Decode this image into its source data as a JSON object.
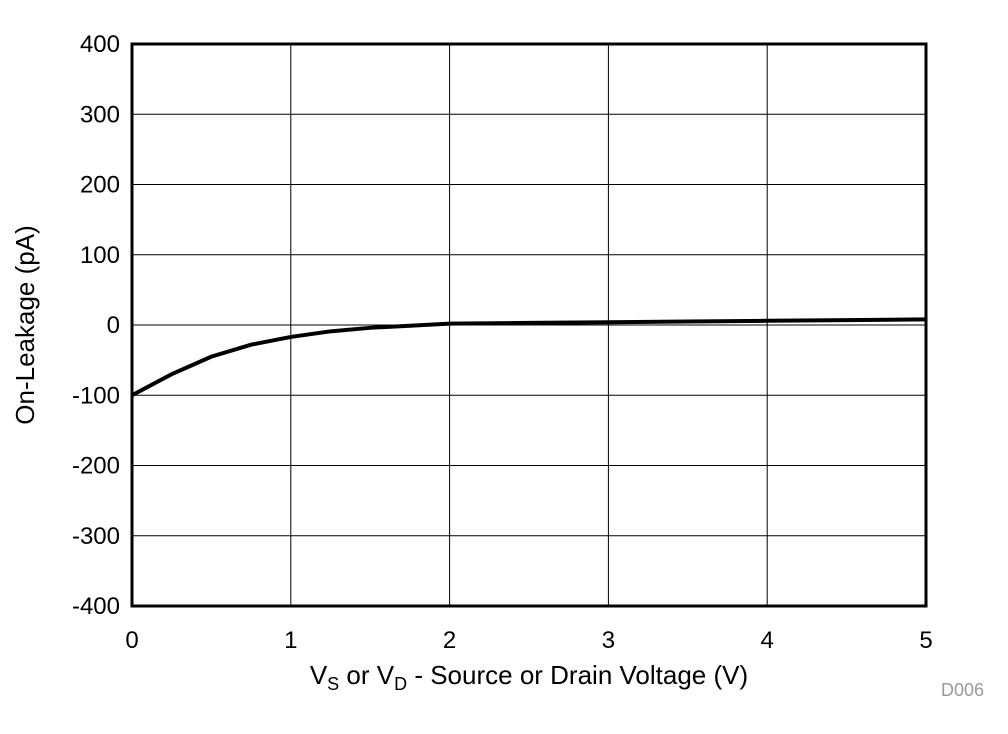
{
  "chart_data": {
    "type": "line",
    "title": "",
    "xlabel": "VS or VD - Source or Drain Voltage (V)",
    "xlabel_parts": {
      "v1": "V",
      "s1": "S",
      "mid": " or V",
      "s2": "D",
      "rest": " - Source or Drain Voltage (V)"
    },
    "ylabel": "On-Leakage (pA)",
    "xlim": [
      0,
      5
    ],
    "ylim": [
      -400,
      400
    ],
    "x_ticks": [
      "0",
      "1",
      "2",
      "3",
      "4",
      "5"
    ],
    "y_ticks": [
      "400",
      "300",
      "200",
      "100",
      "0",
      "-100",
      "-200",
      "-300",
      "-400"
    ],
    "grid": true,
    "legend": null,
    "series": [
      {
        "name": "On-Leakage",
        "x": [
          0,
          0.25,
          0.5,
          0.75,
          1.0,
          1.25,
          1.5,
          1.75,
          2.0,
          2.5,
          3.0,
          3.5,
          4.0,
          4.5,
          5.0
        ],
        "values": [
          -100,
          -70,
          -45,
          -28,
          -17,
          -9,
          -4,
          -1,
          2,
          3,
          4,
          5,
          6,
          7,
          8
        ]
      }
    ],
    "annotation": "D006"
  }
}
